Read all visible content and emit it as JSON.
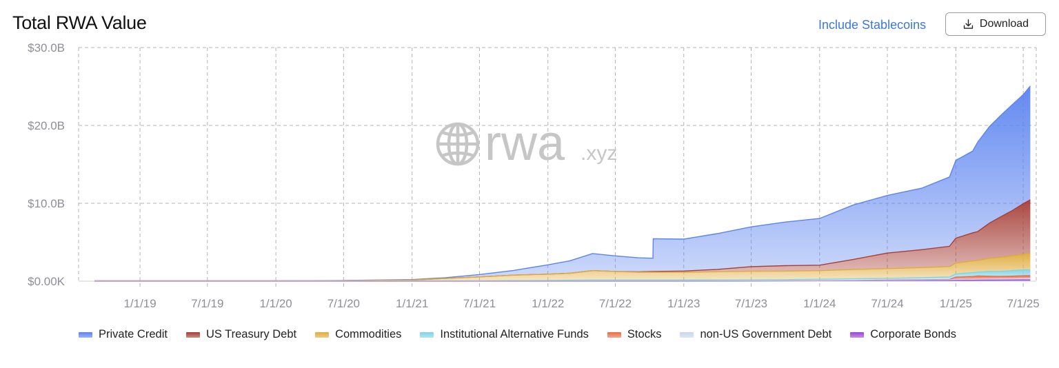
{
  "header": {
    "title": "Total RWA Value",
    "toggle_label": "Include Stablecoins",
    "download_label": "Download"
  },
  "watermark": {
    "brand": "rwa",
    "suffix": ".xyz"
  },
  "colors": {
    "grid": "#b3b3b3",
    "axis_text": "#8e8e99",
    "series": {
      "Private Credit": "#5b83f0",
      "US Treasury Debt": "#a63d36",
      "Commodities": "#e0ab3c",
      "Institutional Alternative Funds": "#7fd3e8",
      "Stocks": "#ec6b45",
      "non-US Government Debt": "#c9d6ec",
      "Corporate Bonds": "#9b44d6"
    }
  },
  "chart_data": {
    "type": "area",
    "stacked": true,
    "title": "Total RWA Value",
    "xlabel": "",
    "ylabel": "",
    "x_ticks": [
      "1/1/19",
      "7/1/19",
      "1/1/20",
      "7/1/20",
      "1/1/21",
      "7/1/21",
      "1/1/22",
      "7/1/22",
      "1/1/23",
      "7/1/23",
      "1/1/24",
      "7/1/24",
      "1/1/25",
      "7/1/25"
    ],
    "y_ticks": [
      "$0.00K",
      "$10.0B",
      "$20.0B",
      "$30.0B"
    ],
    "ylim": [
      0,
      30
    ],
    "y_unit": "billion USD",
    "grid": true,
    "legend": "bottom",
    "x": [
      "2018-09-01",
      "2019-01-01",
      "2019-07-01",
      "2020-01-01",
      "2020-07-01",
      "2021-01-01",
      "2021-04-01",
      "2021-07-01",
      "2021-10-01",
      "2022-01-01",
      "2022-03-01",
      "2022-05-01",
      "2022-07-01",
      "2022-09-01",
      "2022-10-10",
      "2022-10-11",
      "2023-01-01",
      "2023-04-01",
      "2023-07-01",
      "2023-10-01",
      "2024-01-01",
      "2024-04-01",
      "2024-07-01",
      "2024-10-01",
      "2024-12-15",
      "2025-01-01",
      "2025-02-15",
      "2025-03-01",
      "2025-04-01",
      "2025-05-01",
      "2025-06-01",
      "2025-07-01",
      "2025-07-20"
    ],
    "series": [
      {
        "name": "Corporate Bonds",
        "values": [
          0,
          0,
          0,
          0,
          0,
          0,
          0,
          0,
          0,
          0,
          0,
          0,
          0,
          0,
          0,
          0,
          0,
          0,
          0,
          0.01,
          0.02,
          0.03,
          0.05,
          0.07,
          0.08,
          0.1,
          0.11,
          0.12,
          0.13,
          0.14,
          0.15,
          0.16,
          0.16
        ]
      },
      {
        "name": "non-US Government Debt",
        "values": [
          0,
          0,
          0,
          0,
          0,
          0,
          0,
          0,
          0,
          0,
          0,
          0,
          0,
          0,
          0,
          0,
          0,
          0.01,
          0.02,
          0.03,
          0.04,
          0.05,
          0.06,
          0.08,
          0.1,
          0.12,
          0.14,
          0.15,
          0.16,
          0.17,
          0.18,
          0.19,
          0.2
        ]
      },
      {
        "name": "Stocks",
        "values": [
          0,
          0,
          0,
          0,
          0,
          0,
          0,
          0,
          0,
          0,
          0,
          0,
          0,
          0,
          0,
          0,
          0,
          0,
          0,
          0,
          0.01,
          0.02,
          0.03,
          0.04,
          0.05,
          0.3,
          0.35,
          0.4,
          0.35,
          0.3,
          0.32,
          0.35,
          0.35
        ]
      },
      {
        "name": "Institutional Alternative Funds",
        "values": [
          0.05,
          0.05,
          0.05,
          0.05,
          0.05,
          0.05,
          0.05,
          0.05,
          0.08,
          0.1,
          0.12,
          0.15,
          0.15,
          0.15,
          0.15,
          0.15,
          0.15,
          0.15,
          0.15,
          0.15,
          0.18,
          0.2,
          0.22,
          0.25,
          0.3,
          0.4,
          0.5,
          0.5,
          0.6,
          0.65,
          0.7,
          0.75,
          0.75
        ]
      },
      {
        "name": "Commodities",
        "values": [
          0,
          0,
          0,
          0,
          0.02,
          0.1,
          0.3,
          0.5,
          0.7,
          0.8,
          0.9,
          1.2,
          1.1,
          1.0,
          1.0,
          1.0,
          1.0,
          1.05,
          1.1,
          1.1,
          1.1,
          1.2,
          1.25,
          1.3,
          1.35,
          1.4,
          1.5,
          1.5,
          1.7,
          1.8,
          1.9,
          2.0,
          2.1
        ]
      },
      {
        "name": "US Treasury Debt",
        "values": [
          0,
          0,
          0,
          0,
          0,
          0,
          0,
          0,
          0,
          0,
          0,
          0,
          0,
          0.05,
          0.1,
          0.1,
          0.15,
          0.3,
          0.6,
          0.7,
          0.7,
          1.3,
          2.0,
          2.3,
          2.6,
          3.2,
          3.6,
          3.7,
          4.5,
          5.2,
          5.8,
          6.5,
          6.9
        ]
      },
      {
        "name": "Private Credit",
        "values": [
          0,
          0,
          0,
          0,
          0.02,
          0.05,
          0.1,
          0.3,
          0.6,
          1.2,
          1.6,
          2.2,
          2.0,
          1.8,
          1.7,
          4.2,
          4.1,
          4.6,
          5.1,
          5.6,
          6.0,
          7.0,
          7.4,
          7.9,
          8.9,
          10.0,
          10.5,
          11.5,
          12.4,
          13.0,
          13.6,
          14.0,
          14.6
        ]
      }
    ]
  }
}
